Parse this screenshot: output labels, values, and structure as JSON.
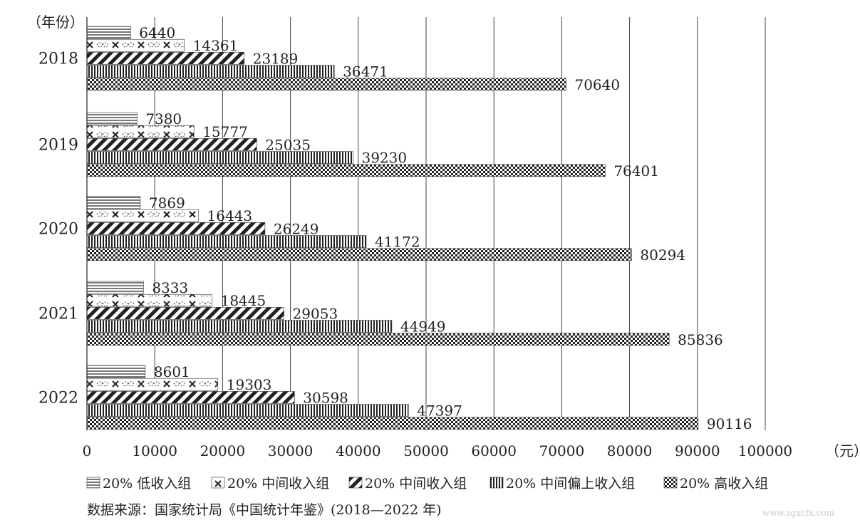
{
  "chart_data": {
    "type": "bar",
    "orientation": "horizontal",
    "categories": [
      "2018",
      "2019",
      "2020",
      "2021",
      "2022"
    ],
    "series": [
      {
        "name": "20% 低收入组",
        "pattern": "horizontal-lines",
        "values": [
          6440,
          7380,
          7869,
          8333,
          8601
        ]
      },
      {
        "name": "20% 中间收入组",
        "pattern": "cross-circles",
        "values": [
          14361,
          15777,
          16443,
          18445,
          19303
        ]
      },
      {
        "name": "20% 中间收入组",
        "pattern": "diagonal-stripes",
        "values": [
          23189,
          25035,
          26249,
          29053,
          30598
        ]
      },
      {
        "name": "20% 中间偏上收入组",
        "pattern": "vertical-lines",
        "values": [
          36471,
          39230,
          41172,
          44949,
          47397
        ]
      },
      {
        "name": "20% 高收入组",
        "pattern": "checkerboard",
        "values": [
          70640,
          76401,
          80294,
          85836,
          90116
        ]
      }
    ],
    "xlim": [
      0,
      100000
    ],
    "xticks": [
      0,
      10000,
      20000,
      30000,
      40000,
      50000,
      60000,
      70000,
      80000,
      90000,
      100000
    ],
    "xunit": "（元）",
    "yunit": "（年份）",
    "grid": true,
    "legend_position": "bottom",
    "source": "数据来源：国家统计局《中国统计年鉴》(2018—2022 年)",
    "watermark": "www.zgxcfx.com"
  }
}
